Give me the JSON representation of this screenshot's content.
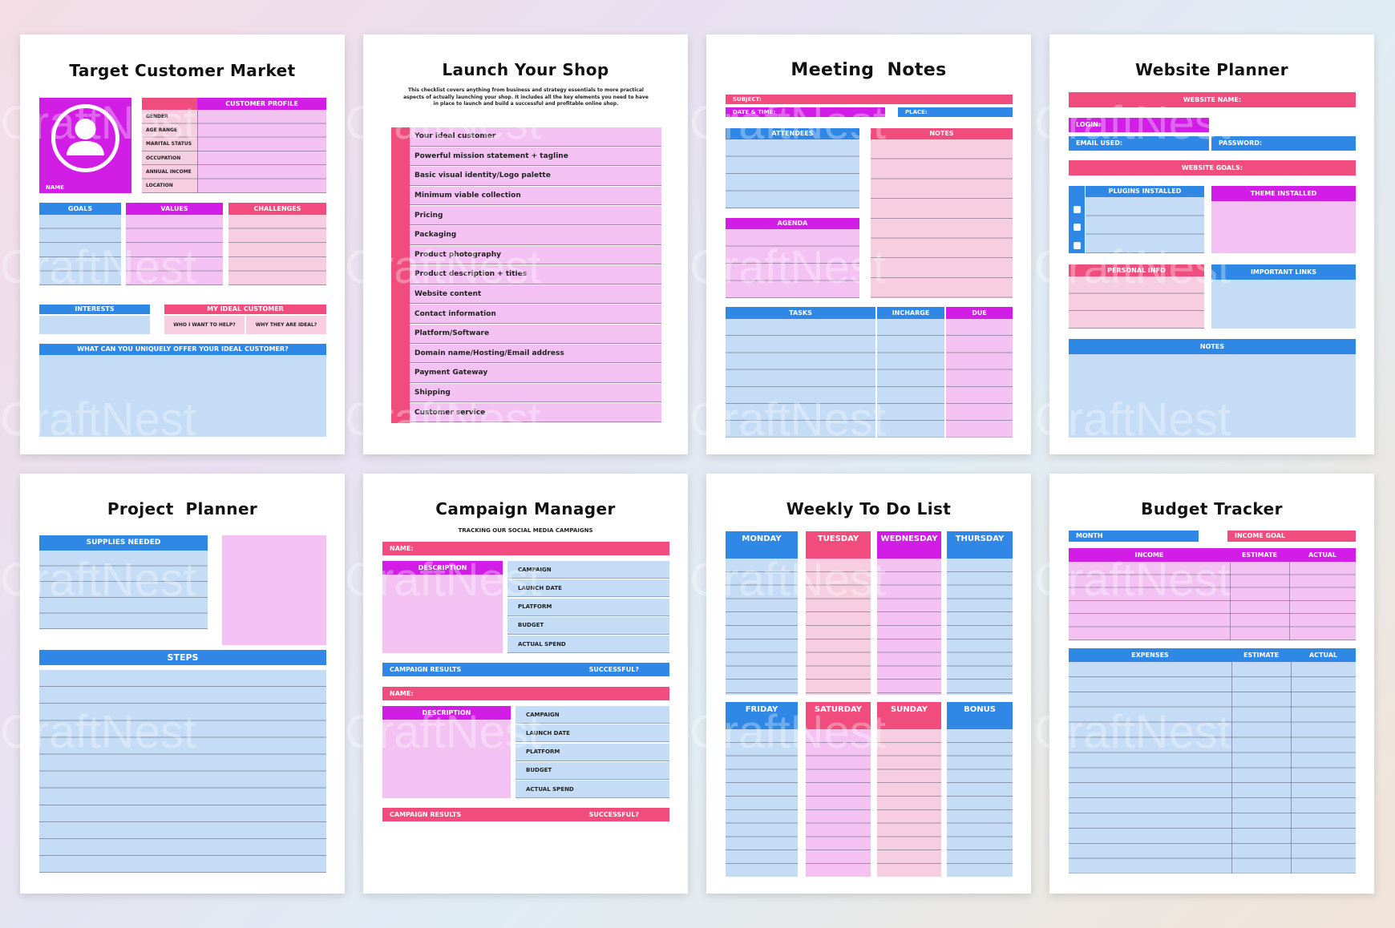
{
  "colors": {
    "pink": "#f04d7e",
    "magenta": "#d21de6",
    "blue": "#2f87e6",
    "lightblue": "#c4dcf5",
    "lightpink": "#f6cee0",
    "lilac": "#f3c2f2"
  },
  "watermark": "CraftNest",
  "target": {
    "title": "Target Customer Market",
    "customer_profile": "CUSTOMER PROFILE",
    "name": "NAME",
    "fields": [
      "GENDER",
      "AGE RANGE",
      "MARITAL STATUS",
      "OCCUPATION",
      "ANNUAL INCOME",
      "LOCATION"
    ],
    "goals": "GOALS",
    "values": "VALUES",
    "challenges": "CHALLENGES",
    "interests": "INTERESTS",
    "ideal": "MY IDEAL CUSTOMER",
    "who": "WHO I WANT TO HELP?",
    "why": "WHY THEY ARE IDEAL?",
    "offer": "WHAT CAN YOU UNIQUELY OFFER YOUR IDEAL CUSTOMER?",
    "avatar_icon": "user-icon"
  },
  "launch": {
    "title": "Launch Your Shop",
    "intro": "This checklist covers anything from business and strategy essentials to more practical aspects of actually launching your shop. It includes all the key elements you need to have in place to launch and build a successful and profitable online shop.",
    "items": [
      "Your ideal customer",
      "Powerful mission statement + tagline",
      "Basic visual identity/Logo palette",
      "Minimum viable collection",
      "Pricing",
      "Packaging",
      "Product photography",
      "Product description + titles",
      "Website content",
      "Contact information",
      "Platform/Software",
      "Domain name/Hosting/Email address",
      "Payment Gateway",
      "Shipping",
      "Customer service"
    ]
  },
  "meeting": {
    "title": "Meeting  Notes",
    "subject": "SUBJECT:",
    "date": "DATE & TIME:",
    "place": "PLACE:",
    "attendees": "ATTENDEES",
    "notes": "NOTES",
    "agenda": "AGENDA",
    "tasks": "TASKS",
    "incharge": "INCHARGE",
    "due": "DUE"
  },
  "website": {
    "title": "Website Planner",
    "name": "WEBSITE NAME:",
    "login": "LOGIN:",
    "email": "EMAIL USED:",
    "password": "PASSWORD:",
    "goals": "WEBSITE GOALS:",
    "plugins": "PLUGINS INSTALLED",
    "theme": "THEME INSTALLED",
    "personal": "PERSONAL INFO",
    "links": "IMPORTANT LINKS",
    "notes": "NOTES"
  },
  "project": {
    "title": "Project  Planner",
    "supplies": "SUPPLIES NEEDED",
    "steps": "STEPS"
  },
  "campaign": {
    "title": "Campaign Manager",
    "subtitle": "TRACKING OUR SOCIAL MEDIA CAMPAIGNS",
    "name": "NAME:",
    "description": "DESCRIPTION",
    "fields": [
      "CAMPAIGN",
      "LAUNCH DATE",
      "PLATFORM",
      "BUDGET",
      "ACTUAL SPEND"
    ],
    "results": "CAMPAIGN RESULTS",
    "successful": "SUCCESSFUL?"
  },
  "weekly": {
    "title": "Weekly To Do List",
    "days_top": [
      "MONDAY",
      "TUESDAY",
      "WEDNESDAY",
      "THURSDAY"
    ],
    "days_bottom": [
      "FRIDAY",
      "SATURDAY",
      "SUNDAY",
      "BONUS"
    ]
  },
  "budget": {
    "title": "Budget Tracker",
    "month": "MONTH",
    "income_goal": "INCOME GOAL",
    "income": "INCOME",
    "expenses": "EXPENSES",
    "estimate": "ESTIMATE",
    "actual": "ACTUAL"
  }
}
